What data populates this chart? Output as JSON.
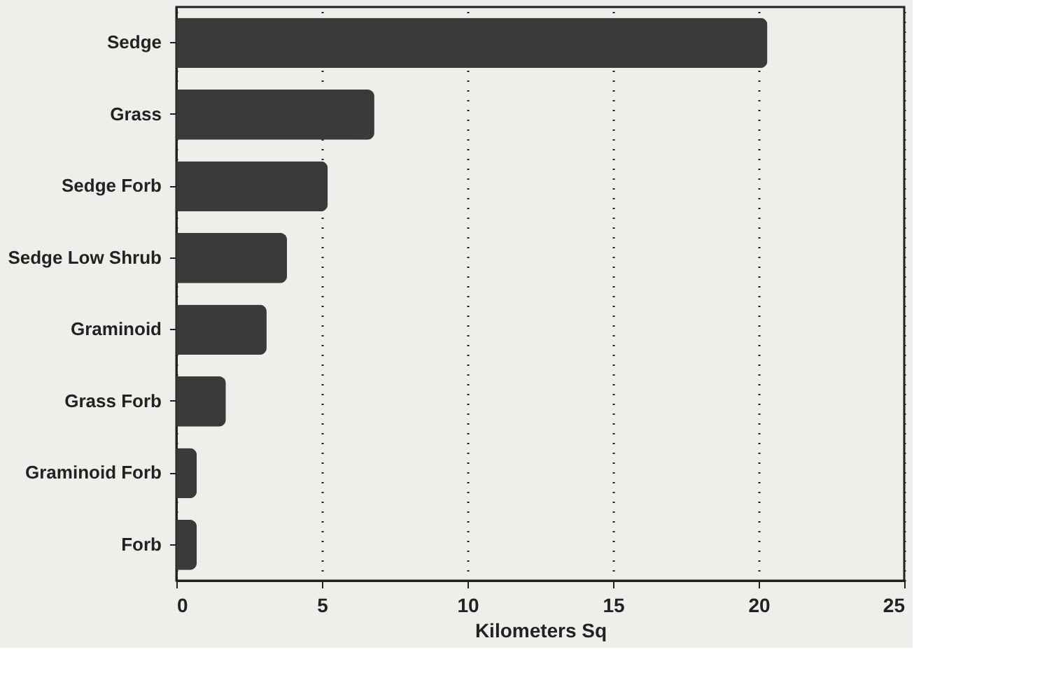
{
  "chart_data": {
    "type": "bar",
    "orientation": "horizontal",
    "xlabel": "Kilometers Sq",
    "categories": [
      "Sedge",
      "Grass",
      "Sedge Forb",
      "Sedge Low Shrub",
      "Graminoid",
      "Grass Forb",
      "Graminoid Forb",
      "Forb"
    ],
    "values": [
      20.3,
      6.8,
      5.2,
      3.8,
      3.1,
      1.7,
      0.7,
      0.7
    ],
    "color": "#3a3a3a",
    "xlim": [
      0,
      25
    ],
    "xticks": [
      0,
      5,
      10,
      15,
      20,
      25
    ],
    "grid": "x"
  }
}
